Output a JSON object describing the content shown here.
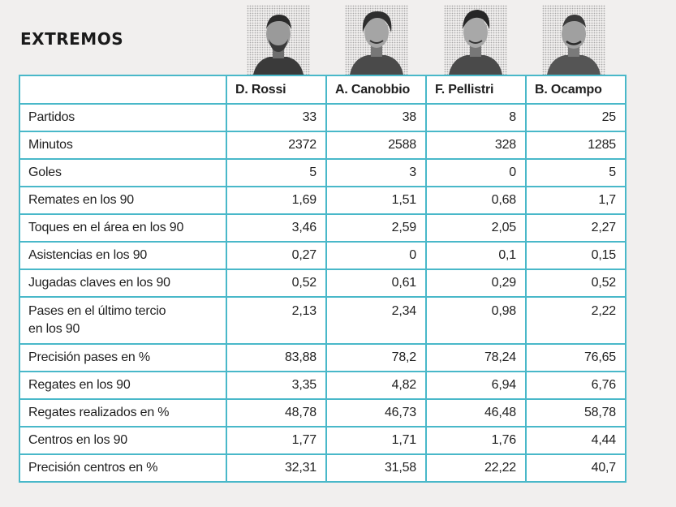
{
  "section": {
    "title": "EXTREMOS"
  },
  "players": [
    {
      "name": "D. Rossi"
    },
    {
      "name": "A. Canobbio"
    },
    {
      "name": "F. Pellistri"
    },
    {
      "name": "B. Ocampo"
    }
  ],
  "rows": [
    {
      "label": "Partidos",
      "values": [
        "33",
        "38",
        "8",
        "25"
      ]
    },
    {
      "label": "Minutos",
      "values": [
        "2372",
        "2588",
        "328",
        "1285"
      ]
    },
    {
      "label": "Goles",
      "values": [
        "5",
        "3",
        "0",
        "5"
      ]
    },
    {
      "label": "Remates en los 90",
      "values": [
        "1,69",
        "1,51",
        "0,68",
        "1,7"
      ]
    },
    {
      "label": "Toques en el área en los 90",
      "values": [
        "3,46",
        "2,59",
        "2,05",
        "2,27"
      ]
    },
    {
      "label": "Asistencias en los 90",
      "values": [
        "0,27",
        "0",
        "0,1",
        "0,15"
      ]
    },
    {
      "label": "Jugadas claves en los 90",
      "values": [
        "0,52",
        "0,61",
        "0,29",
        "0,52"
      ]
    },
    {
      "label_line1": "Pases en el último tercio",
      "label_line2": "en los 90",
      "values": [
        "2,13",
        "2,34",
        "0,98",
        "2,22"
      ]
    },
    {
      "label": "Precisión pases en %",
      "values": [
        "83,88",
        "78,2",
        "78,24",
        "76,65"
      ]
    },
    {
      "label": "Regates  en los 90",
      "values": [
        "3,35",
        "4,82",
        "6,94",
        "6,76"
      ]
    },
    {
      "label": "Regates realizados  en %",
      "values": [
        "48,78",
        "46,73",
        "46,48",
        "58,78"
      ]
    },
    {
      "label": "Centros en los 90",
      "values": [
        "1,77",
        "1,71",
        "1,76",
        "4,44"
      ]
    },
    {
      "label": "Precisión centros en %",
      "values": [
        "32,31",
        "31,58",
        "22,22",
        "40,7"
      ]
    }
  ],
  "colors": {
    "border": "#49b8c9",
    "page_background": "#f1efee",
    "cell_background": "#ffffff"
  }
}
